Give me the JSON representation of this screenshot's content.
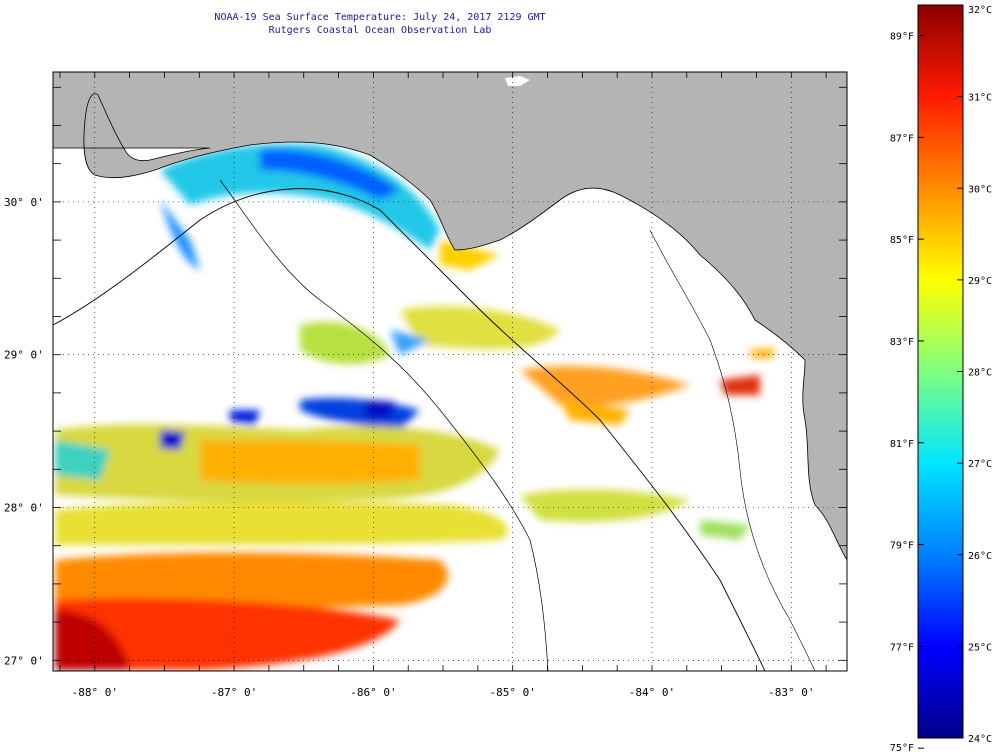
{
  "header": {
    "title": "NOAA-19 Sea Surface Temperature:  July 24, 2017 2129 GMT",
    "subtitle": "Rutgers Coastal Ocean Observation Lab"
  },
  "map": {
    "extent": {
      "lon_min": -88.3,
      "lon_max": -82.6,
      "lat_min": 26.93,
      "lat_max": 30.85
    },
    "colors": {
      "land": "#b4b4b4",
      "no_data": "#ffffff",
      "grid": "#000000"
    },
    "lon_ticks": [
      {
        "value": -88,
        "label": "-88° 0'"
      },
      {
        "value": -87,
        "label": "-87° 0'"
      },
      {
        "value": -86,
        "label": "-86° 0'"
      },
      {
        "value": -85,
        "label": "-85° 0'"
      },
      {
        "value": -84,
        "label": "-84° 0'"
      },
      {
        "value": -83,
        "label": "-83° 0'"
      }
    ],
    "lat_ticks": [
      {
        "value": 30,
        "label": "30° 0'"
      },
      {
        "value": 29,
        "label": "29° 0'"
      },
      {
        "value": 28,
        "label": "28° 0'"
      },
      {
        "value": 27,
        "label": "27° 0'"
      }
    ]
  },
  "colorbar": {
    "celsius": [
      "32°C",
      "31°C",
      "30°C",
      "29°C",
      "28°C",
      "27°C",
      "26°C",
      "25°C",
      "24°C"
    ],
    "fahrenheit": [
      "89°F",
      "87°F",
      "85°F",
      "83°F",
      "81°F",
      "79°F",
      "77°F",
      "75°F"
    ],
    "gradient": [
      "#8b0000",
      "#ff1a00",
      "#ff8c00",
      "#ffff00",
      "#80ff80",
      "#00e5ff",
      "#0080ff",
      "#0000ff",
      "#00008b"
    ]
  }
}
